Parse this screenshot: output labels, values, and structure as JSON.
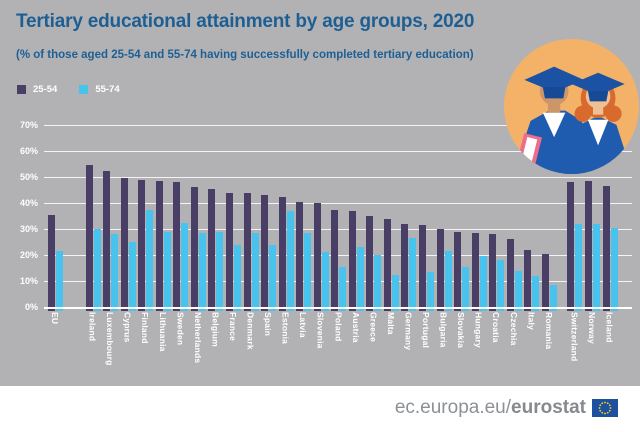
{
  "header": {
    "title": "Tertiary educational attainment by age groups, 2020",
    "subtitle": "(% of those aged 25-54 and 55-74 having successfully completed tertiary education)"
  },
  "legend": [
    {
      "label": "25-54",
      "color": "#483e66"
    },
    {
      "label": "55-74",
      "color": "#48c3ee"
    }
  ],
  "colors": {
    "background": "#b2b2b4",
    "title_text": "#1e5f93",
    "bar_dark": "#483e66",
    "bar_light": "#48c3ee",
    "gridline": "#ffffff",
    "illustration_circle": "#f4b168",
    "gown_blue": "#1f5caf"
  },
  "chart_data": {
    "type": "bar",
    "title": "Tertiary educational attainment by age groups, 2020",
    "subtitle": "(% of those aged 25-54 and 55-74 having successfully completed tertiary education)",
    "ylabel": "",
    "xlabel": "",
    "ylim": [
      0,
      70
    ],
    "yticks": [
      "0%",
      "10%",
      "20%",
      "30%",
      "40%",
      "50%",
      "60%",
      "70%"
    ],
    "grid": true,
    "legend_position": "top-left",
    "categories": [
      "EU",
      "Ireland",
      "Luxembourg",
      "Cyprus",
      "Finland",
      "Lithuania",
      "Sweden",
      "Netherlands",
      "Belgium",
      "France",
      "Denmark",
      "Spain",
      "Estonia",
      "Latvia",
      "Slovenia",
      "Poland",
      "Austria",
      "Greece",
      "Malta",
      "Germany",
      "Portugal",
      "Bulgaria",
      "Slovakia",
      "Hungary",
      "Croatia",
      "Czechia",
      "Italy",
      "Romania",
      "Switzerland",
      "Norway",
      "Iceland"
    ],
    "separator_gap_after_index": [
      0,
      27
    ],
    "series": [
      {
        "name": "25-54",
        "color": "#483e66",
        "values": [
          35.5,
          54.5,
          52.5,
          49.5,
          49,
          48.5,
          48,
          46,
          45.5,
          44,
          44,
          43,
          42.5,
          40.5,
          40,
          37.5,
          37,
          35,
          34,
          32,
          31.5,
          30,
          29,
          28.5,
          28,
          26,
          22,
          20.5,
          48,
          48.5,
          46.5
        ]
      },
      {
        "name": "55-74",
        "color": "#48c3ee",
        "values": [
          21.5,
          30,
          28,
          25,
          37.5,
          29,
          32.5,
          28.5,
          29,
          24,
          28.5,
          24,
          37,
          28.5,
          21,
          15.5,
          23,
          20,
          12.5,
          26.5,
          13.5,
          21.5,
          15.5,
          19.5,
          18,
          14,
          12,
          8.5,
          32,
          32,
          30.5
        ]
      }
    ]
  },
  "footer": {
    "url_prefix": "ec.europa.eu/",
    "url_bold": "eurostat"
  }
}
